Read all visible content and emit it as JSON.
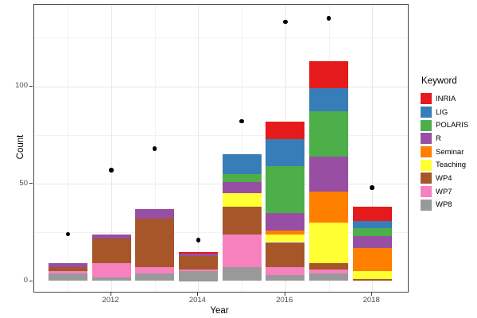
{
  "chart_data": {
    "type": "bar",
    "subtype": "stacked-bars-with-scatter-points",
    "title": "",
    "xlabel": "Year",
    "ylabel": "Count",
    "x_ticks": [
      2012,
      2014,
      2016,
      2018
    ],
    "y_ticks": [
      0,
      50,
      100
    ],
    "x_minor_years": [
      2011,
      2013,
      2015,
      2017
    ],
    "y_minor": [
      25,
      75,
      125
    ],
    "ylim": [
      -6,
      142
    ],
    "grid": true,
    "categories": [
      2011,
      2012,
      2013,
      2014,
      2015,
      2016,
      2017,
      2018
    ],
    "stack_order_bottom_to_top": [
      "WP8",
      "WP7",
      "WP4",
      "Teaching",
      "Seminar",
      "R",
      "POLARIS",
      "LIG",
      "INRIA"
    ],
    "series": [
      {
        "name": "INRIA",
        "color": "#E41A1C",
        "values": [
          0,
          0,
          0,
          1,
          0,
          9,
          14,
          7
        ]
      },
      {
        "name": "LIG",
        "color": "#377EB8",
        "values": [
          0,
          0,
          0,
          0,
          10,
          14,
          12,
          4
        ]
      },
      {
        "name": "POLARIS",
        "color": "#4DAF4A",
        "values": [
          0,
          0,
          0,
          0,
          4,
          24,
          23,
          4
        ]
      },
      {
        "name": "R",
        "color": "#984EA3",
        "values": [
          2,
          2,
          5,
          1,
          6,
          9,
          18,
          6
        ]
      },
      {
        "name": "Seminar",
        "color": "#FF7F00",
        "values": [
          0,
          0,
          0,
          0,
          0,
          2,
          16,
          12
        ]
      },
      {
        "name": "Teaching",
        "color": "#FFFF33",
        "values": [
          0,
          0,
          0,
          0,
          7,
          4,
          21,
          4
        ]
      },
      {
        "name": "WP4",
        "color": "#A65628",
        "values": [
          2,
          13,
          25,
          7,
          14,
          13,
          3,
          1
        ]
      },
      {
        "name": "WP7",
        "color": "#F781BF",
        "values": [
          1,
          7,
          3,
          1,
          17,
          4,
          2,
          0
        ]
      },
      {
        "name": "WP8",
        "color": "#999999",
        "values": [
          4,
          2,
          4,
          5,
          7,
          3,
          4,
          0
        ]
      }
    ],
    "bar_totals": [
      9,
      24,
      37,
      15,
      65,
      82,
      113,
      38
    ],
    "points": {
      "name": "yearly-dots",
      "color": "#000000",
      "values": [
        24,
        57,
        68,
        21,
        82,
        133,
        135,
        48
      ]
    },
    "legend": {
      "title": "Keyword",
      "position": "right",
      "entries": [
        "INRIA",
        "LIG",
        "POLARIS",
        "R",
        "Seminar",
        "Teaching",
        "WP4",
        "WP7",
        "WP8"
      ]
    }
  },
  "style": {
    "background": "#FFFFFF",
    "panel_border": "#4A4A4A",
    "gridline_major": "#E8E8E8",
    "gridline_minor": "#F2F2F2",
    "tick_mark": "#333333",
    "tick_label": "#4D4D4D",
    "point_color": "#000000"
  }
}
